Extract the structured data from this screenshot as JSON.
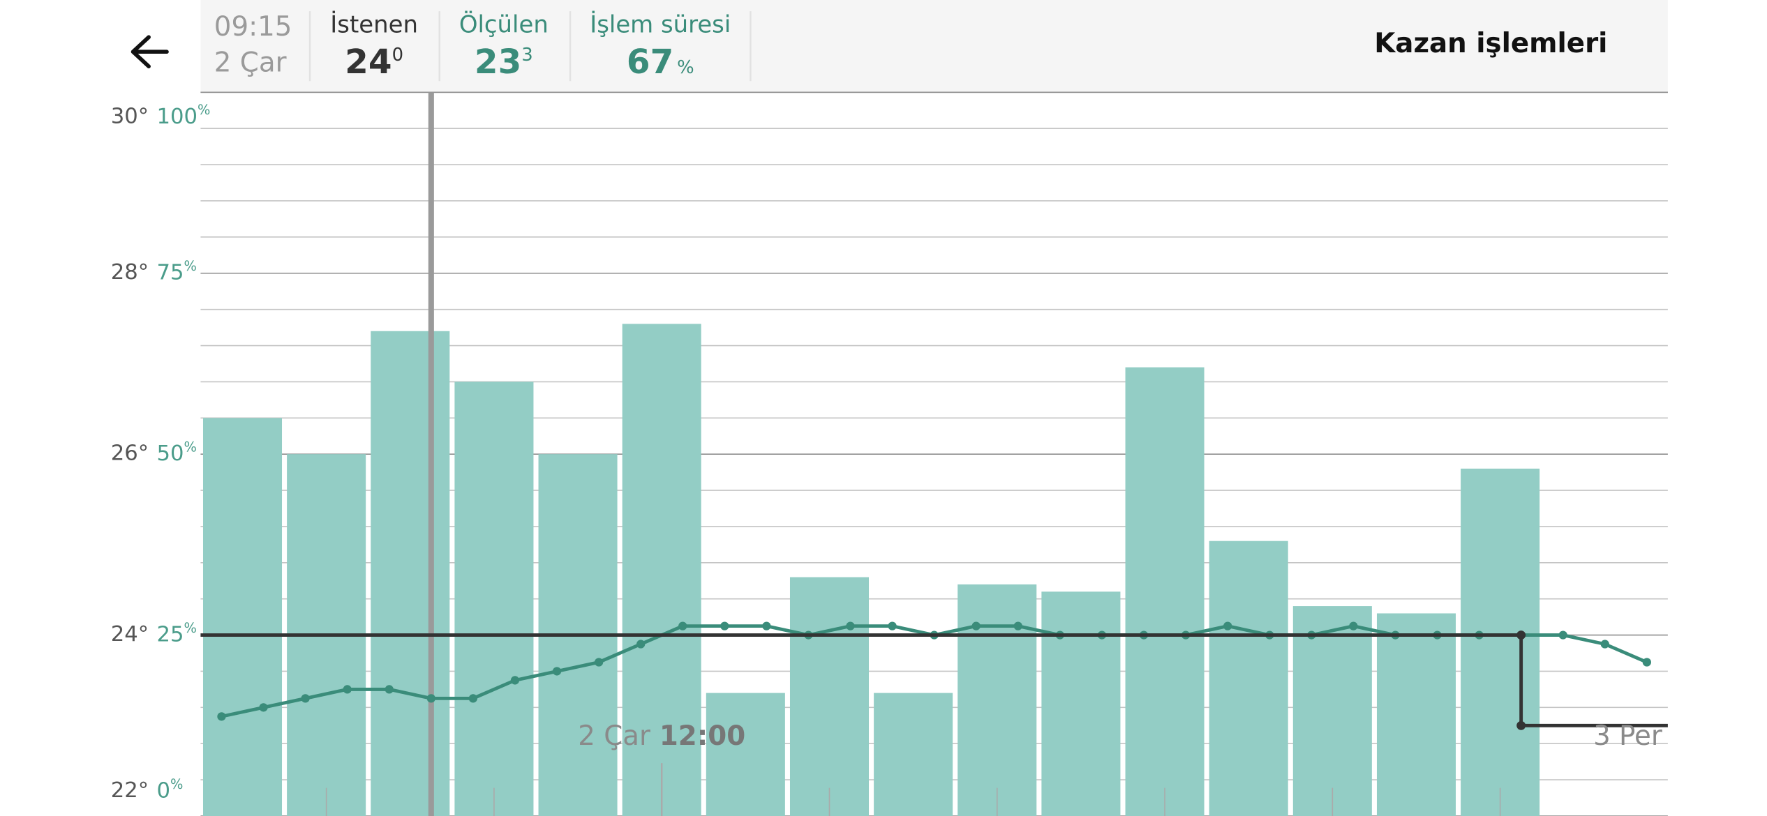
{
  "header": {
    "time": "09:15",
    "day": "2 Çar",
    "title": "Kazan işlemleri",
    "stats": [
      {
        "label": "İstenen",
        "value": "24",
        "decimal": "0"
      },
      {
        "label": "Ölçülen",
        "value": "23",
        "decimal": "3"
      },
      {
        "label": "İşlem süresi",
        "value": "67",
        "decimal": "%"
      }
    ]
  },
  "chart_data": {
    "type": "combo",
    "xlim": [
      6.5,
      24
    ],
    "xticks": [
      {
        "value": 12,
        "label": "2 Çar",
        "time": "12:00"
      },
      {
        "value": 24,
        "label": "3 Per"
      }
    ],
    "xminor_ticks": [
      8,
      10,
      14,
      16,
      18,
      20,
      22
    ],
    "now_x": 9.25,
    "ylim": [
      22,
      30
    ],
    "yticks": [
      {
        "value": 22,
        "label": "22°"
      },
      {
        "value": 24,
        "label": "24°"
      },
      {
        "value": 26,
        "label": "26°"
      },
      {
        "value": 28,
        "label": "28°"
      },
      {
        "value": 30,
        "label": "30°"
      }
    ],
    "y2lim": [
      0,
      100
    ],
    "y2ticks": [
      0,
      25,
      50,
      75,
      100
    ],
    "y2unit": "%",
    "y2minor_ticks": [
      5,
      10,
      15,
      20,
      30,
      35,
      40,
      45,
      55,
      60,
      65,
      70,
      80,
      85,
      90,
      95
    ],
    "grid": true,
    "series": [
      {
        "type": "bar",
        "axis": "y2",
        "color": "#93cdc5",
        "x": [
          7,
          8,
          9,
          10,
          11,
          12,
          13,
          14,
          15,
          16,
          17,
          18,
          19,
          20,
          21,
          22
        ],
        "values": [
          55,
          50,
          67,
          60,
          50,
          68,
          17,
          33,
          17,
          32,
          31,
          62,
          38,
          29,
          28,
          48
        ]
      },
      {
        "type": "line",
        "color": "#3a8c7a",
        "x": [
          6.75,
          7.25,
          7.75,
          8.25,
          8.75,
          9.25,
          9.75,
          10.25,
          10.75,
          11.25,
          11.75,
          12.25,
          12.75,
          13.25,
          13.75,
          14.25,
          14.75,
          15.25,
          15.75,
          16.25,
          16.75,
          17.25,
          17.75,
          18.25,
          18.75,
          19.25,
          19.75,
          20.25,
          20.75,
          21.25,
          21.75,
          22.25,
          22.75,
          23.25,
          23.75
        ],
        "values": [
          23.1,
          23.2,
          23.3,
          23.4,
          23.4,
          23.3,
          23.3,
          23.5,
          23.6,
          23.7,
          23.9,
          24.1,
          24.1,
          24.1,
          24.0,
          24.1,
          24.1,
          24.0,
          24.1,
          24.1,
          24.0,
          24.0,
          24.0,
          24.0,
          24.1,
          24.0,
          24.0,
          24.1,
          24.0,
          24.0,
          24.0,
          24.0,
          24.0,
          23.9,
          23.7
        ]
      },
      {
        "type": "step",
        "color": "#333333",
        "x": [
          6.5,
          22.25,
          22.25,
          24
        ],
        "values": [
          24,
          24,
          23,
          23
        ]
      }
    ]
  }
}
